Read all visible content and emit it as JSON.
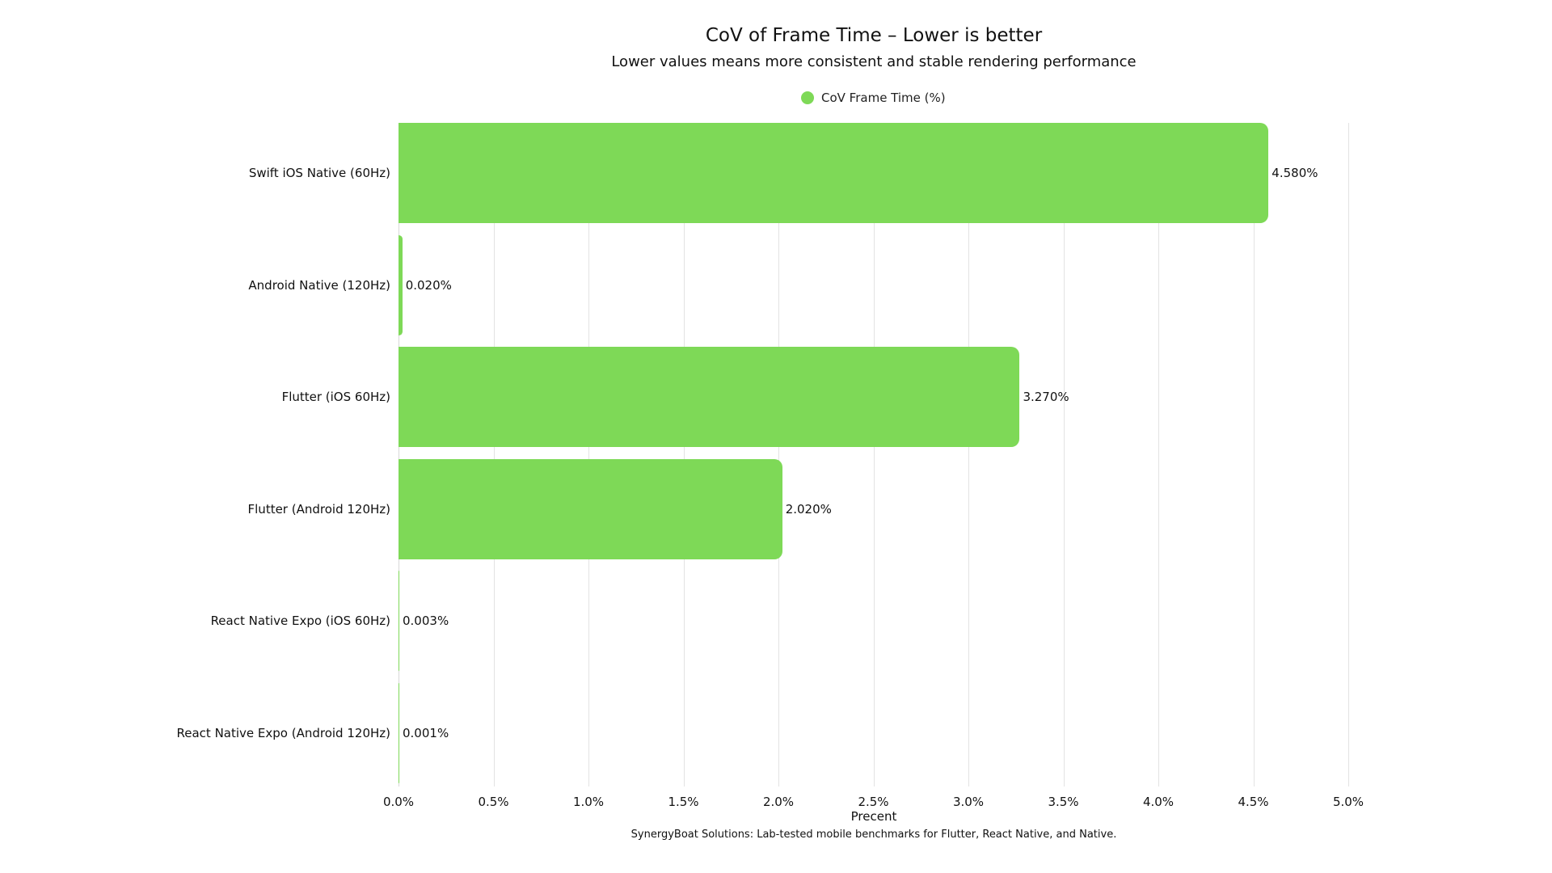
{
  "header": {
    "title": "CoV of Frame Time – Lower is better",
    "subtitle": "Lower values means more consistent and stable rendering performance"
  },
  "legend": {
    "label": "CoV Frame Time (%)",
    "color": "#7ed957"
  },
  "axis": {
    "xlabel": "Precent",
    "ticks": [
      "0.0%",
      "0.5%",
      "1.0%",
      "1.5%",
      "2.0%",
      "2.5%",
      "3.0%",
      "3.5%",
      "4.0%",
      "4.5%",
      "5.0%"
    ]
  },
  "caption": "SynergyBoat Solutions: Lab-tested mobile benchmarks for Flutter, React Native, and Native.",
  "bars": [
    {
      "label": "Swift iOS Native (60Hz)",
      "value": 4.58,
      "display": "4.580%"
    },
    {
      "label": "Android Native (120Hz)",
      "value": 0.02,
      "display": "0.020%"
    },
    {
      "label": "Flutter (iOS 60Hz)",
      "value": 3.27,
      "display": "3.270%"
    },
    {
      "label": "Flutter (Android 120Hz)",
      "value": 2.02,
      "display": "2.020%"
    },
    {
      "label": "React Native Expo (iOS 60Hz)",
      "value": 0.003,
      "display": "0.003%"
    },
    {
      "label": "React Native Expo (Android 120Hz)",
      "value": 0.001,
      "display": "0.001%"
    }
  ],
  "chart_data": {
    "type": "bar",
    "orientation": "horizontal",
    "title": "CoV of Frame Time – Lower is better",
    "subtitle": "Lower values means more consistent and stable rendering performance",
    "categories": [
      "Swift iOS Native (60Hz)",
      "Android Native (120Hz)",
      "Flutter (iOS 60Hz)",
      "Flutter (Android 120Hz)",
      "React Native Expo (iOS 60Hz)",
      "React Native Expo (Android 120Hz)"
    ],
    "series": [
      {
        "name": "CoV Frame Time (%)",
        "values": [
          4.58,
          0.02,
          3.27,
          2.02,
          0.003,
          0.001
        ],
        "color": "#7ed957"
      }
    ],
    "xlabel": "Precent",
    "ylabel": "",
    "xlim": [
      0,
      5
    ],
    "x_ticks": [
      "0.0%",
      "0.5%",
      "1.0%",
      "1.5%",
      "2.0%",
      "2.5%",
      "3.0%",
      "3.5%",
      "4.0%",
      "4.5%",
      "5.0%"
    ],
    "data_labels": [
      "4.580%",
      "0.020%",
      "3.270%",
      "2.020%",
      "0.003%",
      "0.001%"
    ],
    "grid": "vertical",
    "legend_position": "top-center",
    "caption": "SynergyBoat Solutions: Lab-tested mobile benchmarks for Flutter, React Native, and Native."
  }
}
